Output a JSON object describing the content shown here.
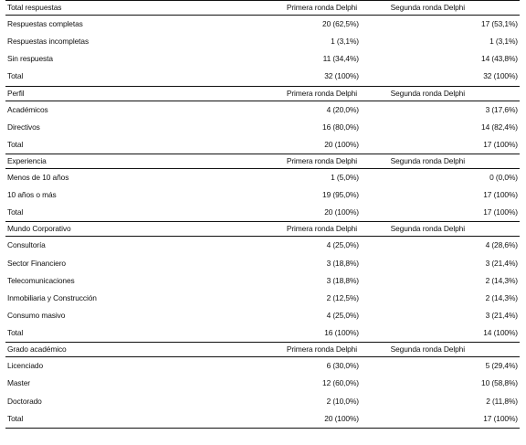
{
  "sections": [
    {
      "title": "Total respuestas",
      "col1": "Primera ronda Delphi",
      "col2": "Segunda ronda Delphi",
      "rows": [
        {
          "label": "Respuestas completas",
          "v1": "20 (62,5%)",
          "v2": "17 (53,1%)"
        },
        {
          "label": "Respuestas incompletas",
          "v1": "1 (3,1%)",
          "v2": "1 (3,1%)"
        },
        {
          "label": "Sin respuesta",
          "v1": "11 (34,4%)",
          "v2": "14 (43,8%)"
        },
        {
          "label": "Total",
          "v1": "32 (100%)",
          "v2": "32 (100%)"
        }
      ]
    },
    {
      "title": "Perfil",
      "col1": "Primera ronda Delphi",
      "col2": "Segunda ronda Delphi",
      "rows": [
        {
          "label": "Académicos",
          "v1": "4 (20,0%)",
          "v2": "3 (17,6%)"
        },
        {
          "label": "Directivos",
          "v1": "16 (80,0%)",
          "v2": "14 (82,4%)"
        },
        {
          "label": "Total",
          "v1": "20 (100%)",
          "v2": "17 (100%)"
        }
      ]
    },
    {
      "title": "Experiencia",
      "col1": "Primera ronda Delphi",
      "col2": "Segunda ronda Delphi",
      "rows": [
        {
          "label": "Menos de 10 años",
          "v1": "1 (5,0%)",
          "v2": "0 (0,0%)"
        },
        {
          "label": "10 años o más",
          "v1": "19 (95,0%)",
          "v2": "17 (100%)"
        },
        {
          "label": "Total",
          "v1": "20 (100%)",
          "v2": "17 (100%)"
        }
      ]
    },
    {
      "title": "Mundo Corporativo",
      "col1": "Primera ronda Delphi",
      "col2": "Segunda ronda Delphi",
      "rows": [
        {
          "label": "Consultoría",
          "v1": "4 (25,0%)",
          "v2": "4 (28,6%)"
        },
        {
          "label": "Sector Financiero",
          "v1": "3 (18,8%)",
          "v2": "3 (21,4%)"
        },
        {
          "label": "Telecomunicaciones",
          "v1": "3 (18,8%)",
          "v2": "2 (14,3%)"
        },
        {
          "label": "Inmobiliaria y Construcción",
          "v1": "2 (12,5%)",
          "v2": "2 (14,3%)"
        },
        {
          "label": "Consumo masivo",
          "v1": "4 (25,0%)",
          "v2": "3 (21,4%)"
        },
        {
          "label": "Total",
          "v1": "16 (100%)",
          "v2": "14 (100%)"
        }
      ]
    },
    {
      "title": "Grado académico",
      "col1": "Primera ronda Delphi",
      "col2": "Segunda ronda Delphi",
      "rows": [
        {
          "label": "Licenciado",
          "v1": "6 (30,0%)",
          "v2": "5 (29,4%)"
        },
        {
          "label": "Master",
          "v1": "12 (60,0%)",
          "v2": "10 (58,8%)"
        },
        {
          "label": "Doctorado",
          "v1": "2 (10,0%)",
          "v2": "2 (11,8%)"
        },
        {
          "label": "Total",
          "v1": "20 (100%)",
          "v2": "17 (100%)"
        }
      ]
    }
  ]
}
